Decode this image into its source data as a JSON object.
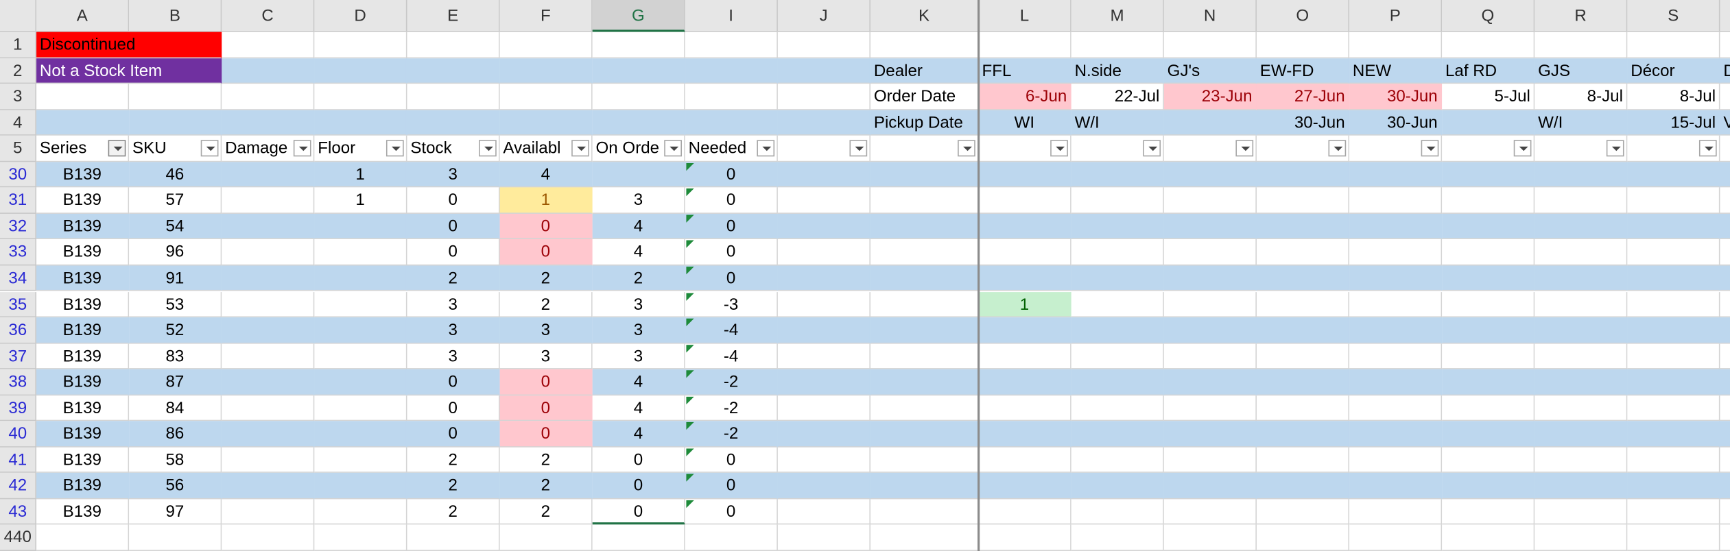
{
  "column_headers": [
    "A",
    "B",
    "C",
    "D",
    "E",
    "F",
    "G",
    "I",
    "J",
    "K",
    "L",
    "M",
    "N",
    "O",
    "P",
    "Q",
    "R",
    "S",
    null
  ],
  "rows": [
    {
      "number": 1,
      "cells": [
        "Discontinued",
        null,
        null,
        null,
        null,
        null,
        null,
        null,
        null,
        null,
        null,
        null,
        null,
        null,
        null,
        null,
        null,
        null,
        null
      ]
    },
    {
      "number": 2,
      "cells": [
        "Not a Stock Item",
        null,
        null,
        null,
        null,
        null,
        null,
        null,
        null,
        "Dealer",
        "FFL",
        "N.side",
        "GJ's",
        "EW-FD",
        "NEW",
        "Laf RD",
        "GJS",
        "Décor",
        "D"
      ]
    },
    {
      "number": 3,
      "cells": [
        null,
        null,
        null,
        null,
        null,
        null,
        null,
        null,
        null,
        "Order Date",
        "6-Jun",
        "22-Jul",
        "23-Jun",
        "27-Jun",
        "30-Jun",
        "5-Jul",
        "8-Jul",
        "8-Jul",
        null
      ]
    },
    {
      "number": 4,
      "cells": [
        null,
        null,
        null,
        null,
        null,
        null,
        null,
        null,
        null,
        "Pickup Date",
        "WI",
        "W/I",
        null,
        "30-Jun",
        "30-Jun",
        null,
        "W/I",
        "15-Jul",
        "V"
      ]
    },
    {
      "number": 5,
      "cells": [
        "Series",
        "SKU",
        "Damage",
        "Floor",
        "Stock",
        "Availabl",
        "On Orde",
        "Needed",
        null,
        null,
        null,
        null,
        null,
        null,
        null,
        null,
        null,
        null,
        null
      ]
    },
    {
      "number": 30,
      "cells": [
        "B139",
        46,
        null,
        1,
        3,
        4,
        null,
        0,
        null,
        null,
        null,
        null,
        null,
        null,
        null,
        null,
        null,
        null,
        null
      ]
    },
    {
      "number": 31,
      "cells": [
        "B139",
        57,
        null,
        1,
        0,
        1,
        3,
        0,
        null,
        null,
        null,
        null,
        null,
        null,
        null,
        null,
        null,
        null,
        null
      ]
    },
    {
      "number": 32,
      "cells": [
        "B139",
        54,
        null,
        null,
        0,
        0,
        4,
        0,
        null,
        null,
        null,
        null,
        null,
        null,
        null,
        null,
        null,
        null,
        null
      ]
    },
    {
      "number": 33,
      "cells": [
        "B139",
        96,
        null,
        null,
        0,
        0,
        4,
        0,
        null,
        null,
        null,
        null,
        null,
        null,
        null,
        null,
        null,
        null,
        null
      ]
    },
    {
      "number": 34,
      "cells": [
        "B139",
        91,
        null,
        null,
        2,
        2,
        2,
        0,
        null,
        null,
        null,
        null,
        null,
        null,
        null,
        null,
        null,
        null,
        null
      ]
    },
    {
      "number": 35,
      "cells": [
        "B139",
        53,
        null,
        null,
        3,
        2,
        3,
        -3,
        null,
        null,
        1,
        null,
        null,
        null,
        null,
        null,
        null,
        null,
        null
      ]
    },
    {
      "number": 36,
      "cells": [
        "B139",
        52,
        null,
        null,
        3,
        3,
        3,
        -4,
        null,
        null,
        null,
        null,
        null,
        null,
        null,
        null,
        null,
        null,
        null
      ]
    },
    {
      "number": 37,
      "cells": [
        "B139",
        83,
        null,
        null,
        3,
        3,
        3,
        -4,
        null,
        null,
        null,
        null,
        null,
        null,
        null,
        null,
        null,
        null,
        null
      ]
    },
    {
      "number": 38,
      "cells": [
        "B139",
        87,
        null,
        null,
        0,
        0,
        4,
        -2,
        null,
        null,
        null,
        null,
        null,
        null,
        null,
        null,
        null,
        null,
        null
      ]
    },
    {
      "number": 39,
      "cells": [
        "B139",
        84,
        null,
        null,
        0,
        0,
        4,
        -2,
        null,
        null,
        null,
        null,
        null,
        null,
        null,
        null,
        null,
        null,
        null
      ]
    },
    {
      "number": 40,
      "cells": [
        "B139",
        86,
        null,
        null,
        0,
        0,
        4,
        -2,
        null,
        null,
        null,
        null,
        null,
        null,
        null,
        null,
        null,
        null,
        null
      ]
    },
    {
      "number": 41,
      "cells": [
        "B139",
        58,
        null,
        null,
        2,
        2,
        0,
        0,
        null,
        null,
        null,
        null,
        null,
        null,
        null,
        null,
        null,
        null,
        null
      ]
    },
    {
      "number": 42,
      "cells": [
        "B139",
        56,
        null,
        null,
        2,
        2,
        0,
        0,
        null,
        null,
        null,
        null,
        null,
        null,
        null,
        null,
        null,
        null,
        null
      ]
    },
    {
      "number": 43,
      "cells": [
        "B139",
        97,
        null,
        null,
        2,
        2,
        0,
        0,
        null,
        null,
        null,
        null,
        null,
        null,
        null,
        null,
        null,
        null,
        null
      ]
    },
    {
      "number": 440,
      "cells": []
    }
  ]
}
